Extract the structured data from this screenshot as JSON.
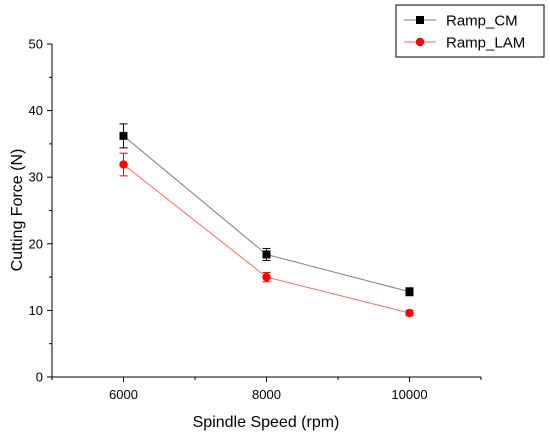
{
  "chart_data": {
    "type": "line",
    "title": "",
    "xlabel": "Spindle Speed (rpm)",
    "ylabel": "Cutting Force (N)",
    "x": [
      6000,
      8000,
      10000
    ],
    "xlim": [
      5000,
      11000
    ],
    "ylim": [
      0,
      50
    ],
    "x_ticks": [
      "6000",
      "8000",
      "10000"
    ],
    "y_ticks": [
      "0",
      "10",
      "20",
      "30",
      "40",
      "50"
    ],
    "grid": false,
    "legend_position": "top-right",
    "series": [
      {
        "name": "Ramp_CM",
        "values": [
          36.2,
          18.4,
          12.8
        ],
        "errors": [
          1.8,
          0.9,
          0.6
        ],
        "marker": "square",
        "color": "#000000",
        "line_color": "#7f7f7f"
      },
      {
        "name": "Ramp_LAM",
        "values": [
          31.9,
          15.0,
          9.6
        ],
        "errors": [
          1.7,
          0.7,
          0.4
        ],
        "marker": "circle",
        "color": "#ff0000",
        "line_color": "#ff6666"
      }
    ]
  }
}
